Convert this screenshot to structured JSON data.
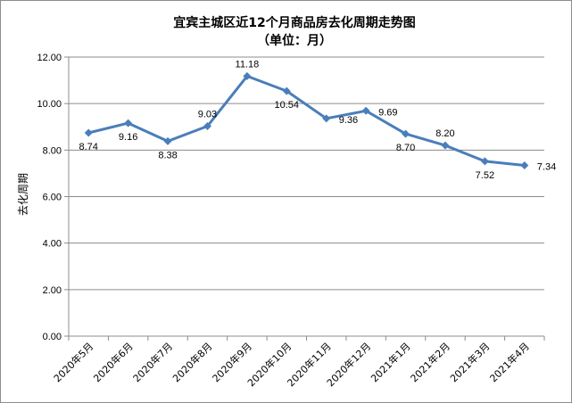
{
  "chart_data": {
    "type": "line",
    "title": "宜宾主城区近12个月商品房去化周期走势图",
    "subtitle": "（单位：月）",
    "ylabel": "去化周期",
    "xlabel": "",
    "categories": [
      "2020年5月",
      "2020年6月",
      "2020年7月",
      "2020年8月",
      "2020年9月",
      "2020年10月",
      "2020年11月",
      "2020年12月",
      "2021年1月",
      "2021年2月",
      "2021年3月",
      "2021年4月"
    ],
    "series": [
      {
        "name": "去化周期",
        "values": [
          8.74,
          9.16,
          8.38,
          9.03,
          11.18,
          10.54,
          9.36,
          9.69,
          8.7,
          8.2,
          7.52,
          7.34
        ]
      }
    ],
    "value_labels": [
      "8.74",
      "9.16",
      "8.38",
      "9.03",
      "11.18",
      "10.54",
      "9.36",
      "9.69",
      "8.70",
      "8.20",
      "7.52",
      "7.34"
    ],
    "ylim": [
      0,
      12
    ],
    "yticks": [
      "0.00",
      "2.00",
      "4.00",
      "6.00",
      "8.00",
      "10.00",
      "12.00"
    ],
    "grid": true,
    "legend": "none",
    "line_color": "#4a7ebb"
  }
}
